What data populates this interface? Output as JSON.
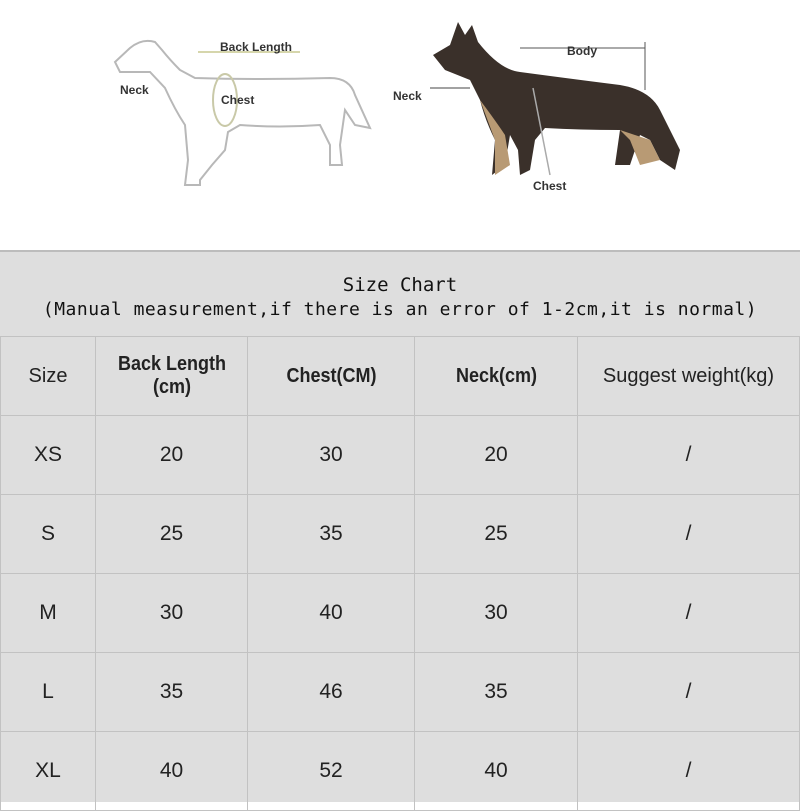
{
  "illustration": {
    "left_labels": {
      "back_length": "Back Length",
      "neck": "Neck",
      "chest": "Chest"
    },
    "right_labels": {
      "body": "Body",
      "neck": "Neck",
      "chest": "Chest"
    }
  },
  "table": {
    "title": "Size Chart",
    "subtitle": "(Manual measurement,if there is an error of 1-2cm,it is normal)",
    "headers": [
      "Size",
      "Back Length\n(cm)",
      "Chest(CM)",
      "Neck(cm)",
      "Suggest weight(kg)"
    ],
    "header_line1": "Back Length",
    "header_line2": "(cm)",
    "rows": [
      [
        "XS",
        "20",
        "30",
        "20",
        "/"
      ],
      [
        "S",
        "25",
        "35",
        "25",
        "/"
      ],
      [
        "M",
        "30",
        "40",
        "30",
        "/"
      ],
      [
        "L",
        "35",
        "46",
        "35",
        "/"
      ],
      [
        "XL",
        "40",
        "52",
        "40",
        "/"
      ]
    ]
  }
}
